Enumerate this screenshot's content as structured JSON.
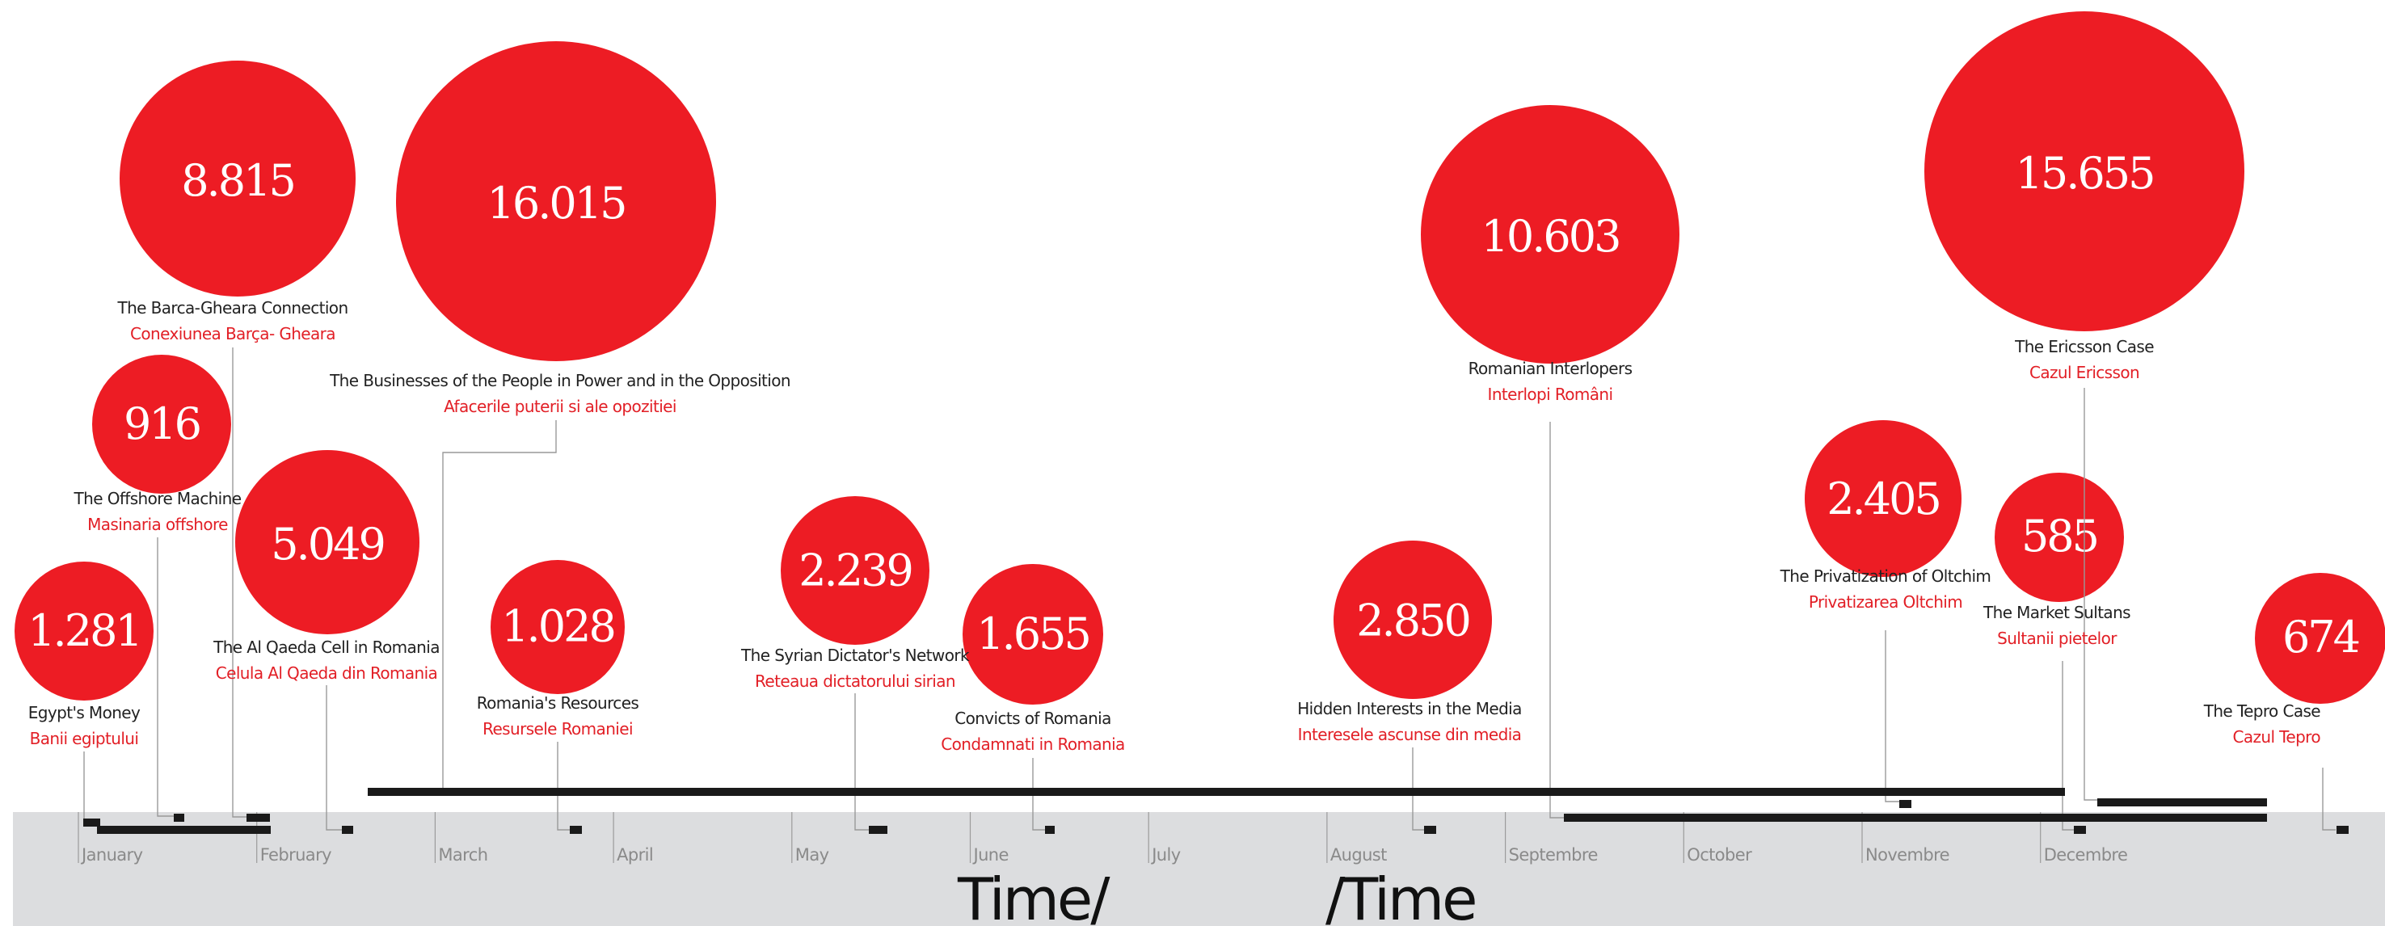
{
  "chart_data": {
    "type": "timeline-bubble",
    "xlabel_left": "Time/",
    "xlabel_right": "/Time",
    "months": [
      "January",
      "February",
      "March",
      "April",
      "May",
      "June",
      "July",
      "August",
      "Septembre",
      "October",
      "Novembre",
      "Decembre"
    ],
    "colors": {
      "bubble": "#ed1c24",
      "axis_band": "#dcdddf",
      "connector": "#999999",
      "bar": "#1a1a1a"
    },
    "items": [
      {
        "value_label": "1.281",
        "value": 1281,
        "title_en": "Egypt's Money",
        "title_ro": "Banii egiptului",
        "start_month": 0.0,
        "end_month": 1.0
      },
      {
        "value_label": "916",
        "value": 916,
        "title_en": "The Offshore Machine",
        "title_ro": "Masinaria offshore",
        "start_month": 0.5,
        "end_month": 0.55
      },
      {
        "value_label": "8.815",
        "value": 8815,
        "title_en": "The Barca-Gheara Connection",
        "title_ro": "Conexiunea Barça- Gheara",
        "start_month": 0.95,
        "end_month": 1.05
      },
      {
        "value_label": "5.049",
        "value": 5049,
        "title_en": "The Al Qaeda Cell in Romania",
        "title_ro": "Celula Al Qaeda din Romania",
        "start_month": 1.5,
        "end_month": 1.55
      },
      {
        "value_label": "16.015",
        "value": 16015,
        "title_en": "The Businesses of the People in Power and in the Opposition",
        "title_ro": "Afacerile puterii si ale opozitiei",
        "start_month": 1.6,
        "end_month": 11.0
      },
      {
        "value_label": "1.028",
        "value": 1028,
        "title_en": "Romania's Resources",
        "title_ro": "Resursele Romaniei",
        "start_month": 2.75,
        "end_month": 2.8
      },
      {
        "value_label": "2.239",
        "value": 2239,
        "title_en": "The Syrian Dictator's Network",
        "title_ro": "Reteaua dictatorului sirian",
        "start_month": 4.35,
        "end_month": 4.45
      },
      {
        "value_label": "1.655",
        "value": 1655,
        "title_en": "Convicts of Romania",
        "title_ro": "Condamnati in Romania",
        "start_month": 5.35,
        "end_month": 5.4
      },
      {
        "value_label": "2.850",
        "value": 2850,
        "title_en": "Hidden Interests in the Media",
        "title_ro": "Interesele ascunse din media",
        "start_month": 7.0,
        "end_month": 7.05
      },
      {
        "value_label": "10.603",
        "value": 10603,
        "title_en": "Romanian Interlopers",
        "title_ro": "Interlopi Români",
        "start_month": 7.85,
        "end_month": 12.15
      },
      {
        "value_label": "2.405",
        "value": 2405,
        "title_en": "The Privatization of Oltchim",
        "title_ro": "Privatizarea Oltchim",
        "start_month": 10.0,
        "end_month": 10.05
      },
      {
        "value_label": "15.655",
        "value": 15655,
        "title_en": "The Ericsson Case",
        "title_ro": "Cazul Ericsson",
        "start_month": 11.5,
        "end_month": 12.25
      },
      {
        "value_label": "585",
        "value": 585,
        "title_en": "The Market Sultans",
        "title_ro": "Sultanii pietelor",
        "start_month": 11.0,
        "end_month": 11.05
      },
      {
        "value_label": "674",
        "value": 674,
        "title_en": "The Tepro Case",
        "title_ro": "Cazul Tepro",
        "start_month": 12.0,
        "end_month": 12.05
      }
    ]
  }
}
